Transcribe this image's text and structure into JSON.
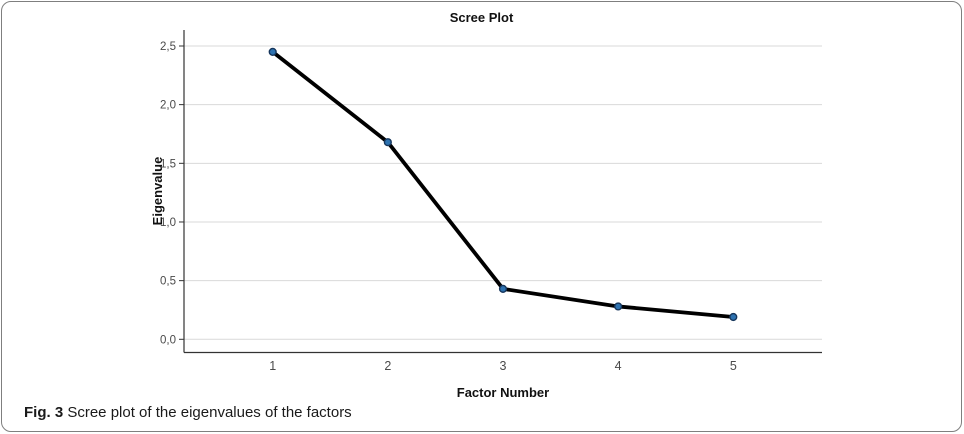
{
  "figure": {
    "caption_label": "Fig. 3",
    "caption_text": "Scree plot of the eigenvalues of the factors"
  },
  "chart_data": {
    "type": "line",
    "title": "Scree Plot",
    "xlabel": "Factor Number",
    "ylabel": "Eigenvalue",
    "x": [
      1,
      2,
      3,
      4,
      5
    ],
    "values": [
      2.45,
      1.68,
      0.43,
      0.28,
      0.19
    ],
    "x_tick_labels": [
      "1",
      "2",
      "3",
      "4",
      "5"
    ],
    "y_ticks": [
      0,
      0.5,
      1,
      1.5,
      2,
      2.5
    ],
    "y_tick_labels": [
      "0,0",
      "0,5",
      "1,0",
      "1,5",
      "2,0",
      "2,5"
    ],
    "ylim": [
      -0.12,
      2.65
    ],
    "grid": "horizontal",
    "legend": "none",
    "colors": {
      "line": "#000000",
      "marker_fill": "#2d72b0",
      "marker_stroke": "#16365c",
      "gridline": "#d9d9d9",
      "axis": "#333333",
      "tick_label": "#4a4a4a"
    }
  }
}
